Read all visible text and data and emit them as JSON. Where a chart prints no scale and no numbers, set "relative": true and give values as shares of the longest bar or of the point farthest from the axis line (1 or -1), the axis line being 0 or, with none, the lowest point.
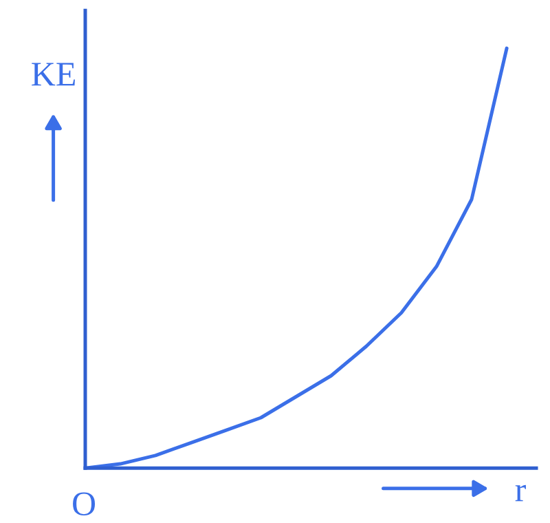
{
  "chart_data": {
    "type": "line",
    "relative": true,
    "xlabel": "r",
    "ylabel": "KE",
    "annotations": [
      "O"
    ],
    "categories": [
      null,
      null,
      null,
      null,
      null,
      null,
      null,
      null,
      null,
      null,
      null,
      null,
      null
    ],
    "series": [
      {
        "color": "#3b6fe8",
        "values": [
          0,
          0.01,
          0.03,
          0.06,
          0.09,
          0.12,
          0.17,
          0.22,
          0.29,
          0.37,
          0.48,
          0.64,
          1.0
        ]
      }
    ],
    "legend": false,
    "marker": "none",
    "line_style": "solid",
    "tick_labels": false
  }
}
